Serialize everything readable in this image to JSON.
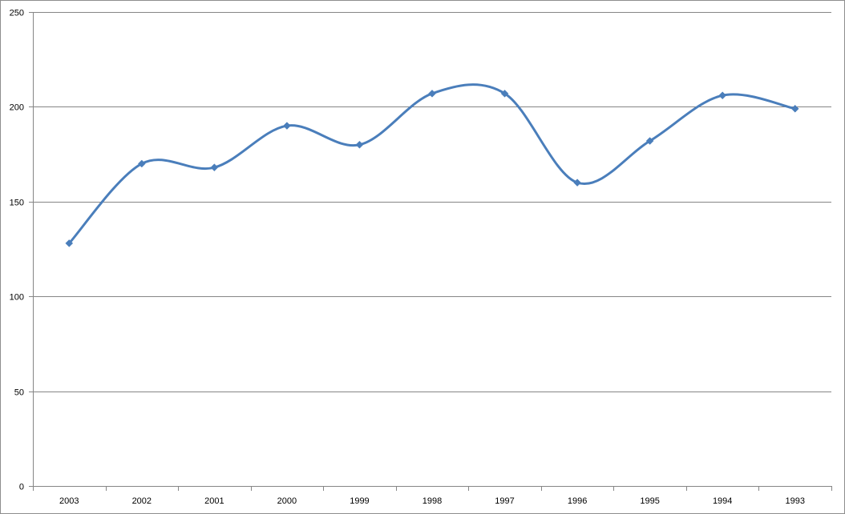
{
  "chart_data": {
    "type": "line",
    "title": "",
    "xlabel": "",
    "ylabel": "",
    "categories": [
      "2003",
      "2002",
      "2001",
      "2000",
      "1999",
      "1998",
      "1997",
      "1996",
      "1995",
      "1994",
      "1993"
    ],
    "series": [
      {
        "values": [
          128,
          170,
          168,
          190,
          180,
          207,
          207,
          160,
          182,
          206,
          199
        ]
      }
    ],
    "ylim": [
      0,
      250
    ],
    "yticks": [
      0,
      50,
      100,
      150,
      200,
      250
    ],
    "grid": "horizontal",
    "legend": "none",
    "smooth": true,
    "marker": "diamond",
    "colors": {
      "line": "#4a7ebb",
      "marker": "#4a7ebb",
      "grid": "#868686",
      "axis": "#868686"
    }
  }
}
